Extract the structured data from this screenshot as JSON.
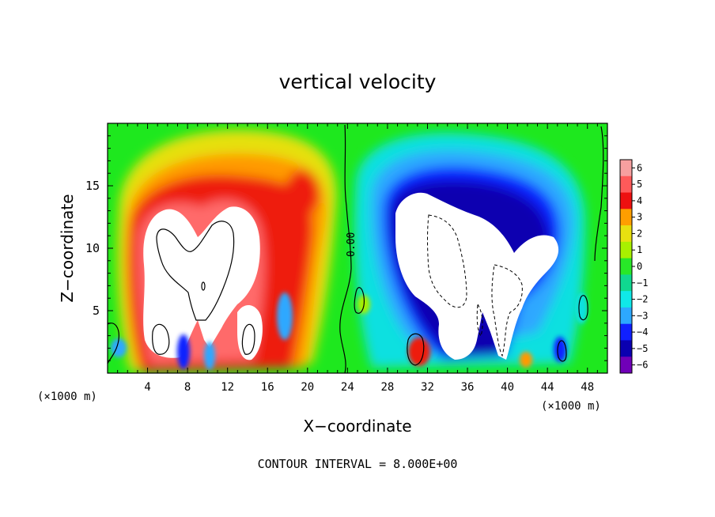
{
  "chart_data": {
    "type": "heatmap",
    "title": "vertical velocity",
    "xlabel": "X−coordinate",
    "ylabel": "Z−coordinate",
    "x_unit_left": "(×1000 m)",
    "x_unit_right": "(×1000 m)",
    "footer": "CONTOUR INTERVAL = 8.000E+00",
    "contour_label": "0.00",
    "xlim": [
      0,
      50
    ],
    "ylim": [
      0,
      20
    ],
    "x_ticks": [
      "4",
      "8",
      "12",
      "16",
      "20",
      "24",
      "28",
      "32",
      "36",
      "40",
      "44",
      "48"
    ],
    "y_ticks": [
      "5",
      "10",
      "15"
    ],
    "colorbar": {
      "levels": [
        "6",
        "5",
        "4",
        "3",
        "2",
        "1",
        "0",
        "−1",
        "−2",
        "−3",
        "−4",
        "−5",
        "−6"
      ],
      "colors": [
        "#f7a0a0",
        "#ff5a5a",
        "#ee1010",
        "#ff9e00",
        "#e8e010",
        "#a8f000",
        "#28e828",
        "#10d890",
        "#10e8e8",
        "#2da8ff",
        "#1020ff",
        "#0a00b0",
        "#7000b8"
      ]
    }
  }
}
